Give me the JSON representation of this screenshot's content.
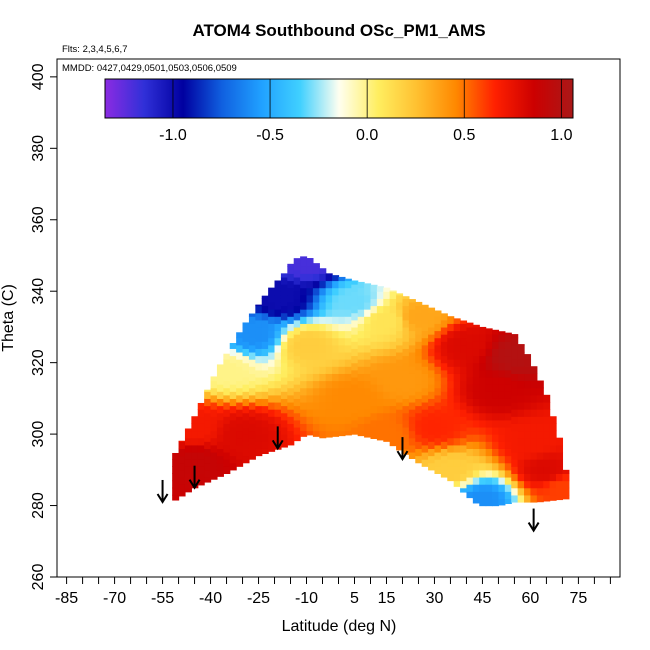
{
  "chart_data": {
    "type": "heatmap",
    "title": "ATOM4 Southbound OSc_PM1_AMS",
    "flights_label": "Flts: 2,3,4,5,6,7",
    "dates_label": "MMDD: 0427,0429,0501,0503,0506,0509",
    "xlabel": "Latitude (deg N)",
    "ylabel": "Theta (C)",
    "xlim": [
      -88,
      88
    ],
    "ylim": [
      260,
      405
    ],
    "x_ticks": [
      -85,
      -70,
      -55,
      -40,
      -25,
      -10,
      5,
      15,
      30,
      45,
      60,
      75
    ],
    "x_minor_step": 5,
    "y_ticks": [
      260,
      280,
      300,
      320,
      340,
      360,
      380,
      400
    ],
    "colorbar": {
      "range": [
        -1.35,
        1.06
      ],
      "ticks": [
        -1.0,
        -0.5,
        0.0,
        0.5,
        1.0
      ],
      "tick_labels": [
        "-1.0",
        "-0.5",
        "0.0",
        "0.5",
        "1.0"
      ],
      "colors": [
        "#8b2be2",
        "#3030d8",
        "#0000a0",
        "#1060e0",
        "#20a0ff",
        "#40d0ff",
        "#fffff0",
        "#ffee60",
        "#ffc030",
        "#ff8800",
        "#ff2000",
        "#cc0000",
        "#aa1818"
      ]
    },
    "arrows": [
      {
        "lat": -55,
        "theta": 281
      },
      {
        "lat": -45,
        "theta": 285
      },
      {
        "lat": -19,
        "theta": 296
      },
      {
        "lat": 20,
        "theta": 293
      },
      {
        "lat": 61,
        "theta": 273
      }
    ],
    "field": {
      "lat_range": [
        -52,
        72
      ],
      "lat_step": 2,
      "theta_step": 2,
      "upper_boundary": [
        [
          -52,
          293
        ],
        [
          -45,
          305
        ],
        [
          -38,
          318
        ],
        [
          -30,
          330
        ],
        [
          -22,
          340
        ],
        [
          -17,
          345
        ],
        [
          -14,
          349
        ],
        [
          -10,
          350
        ],
        [
          -3,
          345
        ],
        [
          5,
          343
        ],
        [
          15,
          341
        ],
        [
          25,
          337
        ],
        [
          35,
          333
        ],
        [
          45,
          330
        ],
        [
          55,
          328
        ],
        [
          60,
          321
        ],
        [
          65,
          311
        ],
        [
          70,
          296
        ],
        [
          72,
          284
        ]
      ],
      "lower_boundary": [
        [
          -52,
          281
        ],
        [
          -45,
          285
        ],
        [
          -35,
          289
        ],
        [
          -25,
          294
        ],
        [
          -15,
          297
        ],
        [
          -10,
          300
        ],
        [
          -5,
          299
        ],
        [
          5,
          300
        ],
        [
          15,
          298
        ],
        [
          25,
          292
        ],
        [
          35,
          287
        ],
        [
          40,
          283
        ],
        [
          44,
          280
        ],
        [
          50,
          280
        ],
        [
          55,
          281
        ],
        [
          62,
          281
        ],
        [
          72,
          282
        ]
      ],
      "anchors": [
        {
          "lat": -10,
          "theta": 348,
          "value": -1.2
        },
        {
          "lat": -18,
          "theta": 338,
          "value": -1.0
        },
        {
          "lat": -26,
          "theta": 328,
          "value": -0.6
        },
        {
          "lat": -35,
          "theta": 318,
          "value": 0.0
        },
        {
          "lat": 5,
          "theta": 337,
          "value": -0.3
        },
        {
          "lat": 15,
          "theta": 332,
          "value": 0.1
        },
        {
          "lat": 25,
          "theta": 333,
          "value": 0.35
        },
        {
          "lat": 40,
          "theta": 325,
          "value": 0.8
        },
        {
          "lat": 55,
          "theta": 322,
          "value": 1.0
        },
        {
          "lat": 50,
          "theta": 312,
          "value": 0.85
        },
        {
          "lat": -45,
          "theta": 292,
          "value": 0.9
        },
        {
          "lat": -30,
          "theta": 300,
          "value": 0.8
        },
        {
          "lat": -45,
          "theta": 302,
          "value": 0.7
        },
        {
          "lat": 5,
          "theta": 310,
          "value": 0.45
        },
        {
          "lat": 20,
          "theta": 315,
          "value": 0.4
        },
        {
          "lat": 15,
          "theta": 300,
          "value": 0.5
        },
        {
          "lat": 30,
          "theta": 302,
          "value": 0.65
        },
        {
          "lat": 35,
          "theta": 290,
          "value": 0.2
        },
        {
          "lat": 45,
          "theta": 282,
          "value": -0.6
        },
        {
          "lat": 60,
          "theta": 298,
          "value": 0.7
        },
        {
          "lat": 65,
          "theta": 290,
          "value": 0.8
        },
        {
          "lat": 70,
          "theta": 285,
          "value": 0.6
        },
        {
          "lat": -10,
          "theta": 325,
          "value": 0.2
        }
      ]
    }
  }
}
